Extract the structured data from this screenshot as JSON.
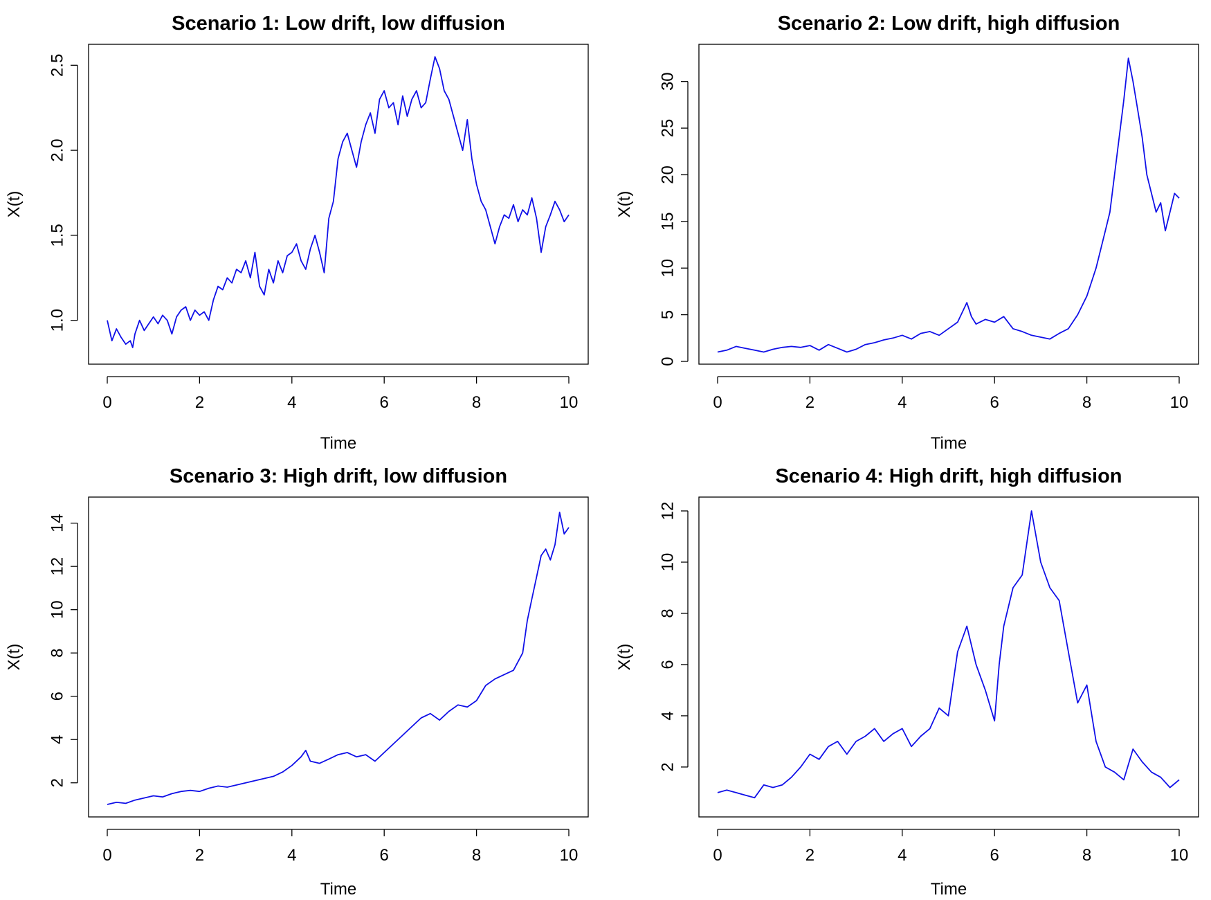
{
  "chart_data": [
    {
      "type": "line",
      "title": "Scenario 1: Low drift, low diffusion",
      "xlabel": "Time",
      "ylabel": "X(t)",
      "xlim": [
        0,
        10
      ],
      "ylim": [
        0.84,
        2.55
      ],
      "xticks": [
        0,
        2,
        4,
        6,
        8,
        10
      ],
      "yticks": [
        1.0,
        1.5,
        2.0,
        2.5
      ],
      "ytick_labels": [
        "1.0",
        "1.5",
        "2.0",
        "2.5"
      ],
      "grid": false,
      "series_color": "#1010e8",
      "x": [
        0,
        0.1,
        0.2,
        0.3,
        0.4,
        0.5,
        0.55,
        0.6,
        0.7,
        0.8,
        0.9,
        1.0,
        1.1,
        1.2,
        1.3,
        1.4,
        1.5,
        1.6,
        1.7,
        1.8,
        1.9,
        2.0,
        2.1,
        2.2,
        2.3,
        2.4,
        2.5,
        2.6,
        2.7,
        2.8,
        2.9,
        3.0,
        3.1,
        3.2,
        3.3,
        3.4,
        3.5,
        3.6,
        3.7,
        3.8,
        3.9,
        4.0,
        4.1,
        4.2,
        4.3,
        4.4,
        4.5,
        4.6,
        4.7,
        4.8,
        4.9,
        5.0,
        5.1,
        5.2,
        5.3,
        5.4,
        5.5,
        5.6,
        5.7,
        5.8,
        5.9,
        6.0,
        6.1,
        6.2,
        6.3,
        6.4,
        6.5,
        6.6,
        6.7,
        6.8,
        6.9,
        7.0,
        7.1,
        7.2,
        7.3,
        7.4,
        7.5,
        7.6,
        7.7,
        7.8,
        7.9,
        8.0,
        8.1,
        8.2,
        8.3,
        8.4,
        8.5,
        8.6,
        8.7,
        8.8,
        8.9,
        9.0,
        9.1,
        9.2,
        9.3,
        9.4,
        9.5,
        9.6,
        9.7,
        9.8,
        9.9,
        10.0
      ],
      "y": [
        1.0,
        0.88,
        0.95,
        0.9,
        0.86,
        0.88,
        0.84,
        0.92,
        1.0,
        0.94,
        0.98,
        1.02,
        0.98,
        1.03,
        1.0,
        0.92,
        1.02,
        1.06,
        1.08,
        1.0,
        1.06,
        1.03,
        1.05,
        1.0,
        1.12,
        1.2,
        1.18,
        1.25,
        1.22,
        1.3,
        1.28,
        1.35,
        1.25,
        1.4,
        1.2,
        1.15,
        1.3,
        1.22,
        1.35,
        1.28,
        1.38,
        1.4,
        1.45,
        1.35,
        1.3,
        1.42,
        1.5,
        1.4,
        1.28,
        1.6,
        1.7,
        1.95,
        2.05,
        2.1,
        2.0,
        1.9,
        2.05,
        2.15,
        2.22,
        2.1,
        2.3,
        2.35,
        2.25,
        2.28,
        2.15,
        2.32,
        2.2,
        2.3,
        2.35,
        2.25,
        2.28,
        2.42,
        2.55,
        2.48,
        2.35,
        2.3,
        2.2,
        2.1,
        2.0,
        2.18,
        1.95,
        1.8,
        1.7,
        1.65,
        1.55,
        1.45,
        1.55,
        1.62,
        1.6,
        1.68,
        1.58,
        1.65,
        1.62,
        1.72,
        1.6,
        1.4,
        1.55,
        1.62,
        1.7,
        1.65,
        1.58,
        1.62
      ]
    },
    {
      "type": "line",
      "title": "Scenario 2: Low drift, high diffusion",
      "xlabel": "Time",
      "ylabel": "X(t)",
      "xlim": [
        0,
        10
      ],
      "ylim": [
        0,
        32.5
      ],
      "xticks": [
        0,
        2,
        4,
        6,
        8,
        10
      ],
      "yticks": [
        0,
        5,
        10,
        15,
        20,
        25,
        30
      ],
      "ytick_labels": [
        "0",
        "5",
        "10",
        "15",
        "20",
        "25",
        "30"
      ],
      "grid": false,
      "series_color": "#1010e8",
      "x": [
        0,
        0.2,
        0.4,
        0.6,
        0.8,
        1.0,
        1.2,
        1.4,
        1.6,
        1.8,
        2.0,
        2.2,
        2.4,
        2.6,
        2.8,
        3.0,
        3.2,
        3.4,
        3.6,
        3.8,
        4.0,
        4.2,
        4.4,
        4.6,
        4.8,
        5.0,
        5.2,
        5.4,
        5.5,
        5.6,
        5.8,
        6.0,
        6.2,
        6.4,
        6.6,
        6.8,
        7.0,
        7.2,
        7.4,
        7.6,
        7.8,
        8.0,
        8.1,
        8.2,
        8.3,
        8.4,
        8.5,
        8.6,
        8.7,
        8.8,
        8.9,
        9.0,
        9.1,
        9.2,
        9.3,
        9.4,
        9.5,
        9.6,
        9.7,
        9.8,
        9.9,
        10.0
      ],
      "y": [
        1.0,
        1.2,
        1.6,
        1.4,
        1.2,
        1.0,
        1.3,
        1.5,
        1.6,
        1.5,
        1.7,
        1.2,
        1.8,
        1.4,
        1.0,
        1.3,
        1.8,
        2.0,
        2.3,
        2.5,
        2.8,
        2.4,
        3.0,
        3.2,
        2.8,
        3.5,
        4.2,
        6.3,
        4.8,
        4.0,
        4.5,
        4.2,
        4.8,
        3.5,
        3.2,
        2.8,
        2.6,
        2.4,
        3.0,
        3.5,
        5.0,
        7.0,
        8.5,
        10.0,
        12.0,
        14.0,
        16.0,
        20.0,
        24.0,
        28.0,
        32.5,
        30.0,
        27.0,
        24.0,
        20.0,
        18.0,
        16.0,
        17.0,
        14.0,
        16.0,
        18.0,
        17.5
      ]
    },
    {
      "type": "line",
      "title": "Scenario 3: High drift, low diffusion",
      "xlabel": "Time",
      "ylabel": "X(t)",
      "xlim": [
        0,
        10
      ],
      "ylim": [
        1.0,
        14.5
      ],
      "xticks": [
        0,
        2,
        4,
        6,
        8,
        10
      ],
      "yticks": [
        2,
        4,
        6,
        8,
        10,
        12,
        14
      ],
      "ytick_labels": [
        "2",
        "4",
        "6",
        "8",
        "10",
        "12",
        "14"
      ],
      "grid": false,
      "series_color": "#1010e8",
      "x": [
        0,
        0.2,
        0.4,
        0.6,
        0.8,
        1.0,
        1.2,
        1.4,
        1.6,
        1.8,
        2.0,
        2.2,
        2.4,
        2.6,
        2.8,
        3.0,
        3.2,
        3.4,
        3.6,
        3.8,
        4.0,
        4.2,
        4.3,
        4.4,
        4.6,
        4.8,
        5.0,
        5.2,
        5.4,
        5.6,
        5.8,
        6.0,
        6.2,
        6.4,
        6.6,
        6.8,
        7.0,
        7.2,
        7.4,
        7.6,
        7.8,
        8.0,
        8.2,
        8.4,
        8.6,
        8.8,
        9.0,
        9.1,
        9.2,
        9.3,
        9.4,
        9.5,
        9.6,
        9.7,
        9.8,
        9.9,
        10.0
      ],
      "y": [
        1.0,
        1.1,
        1.05,
        1.2,
        1.3,
        1.4,
        1.35,
        1.5,
        1.6,
        1.65,
        1.6,
        1.75,
        1.85,
        1.8,
        1.9,
        2.0,
        2.1,
        2.2,
        2.3,
        2.5,
        2.8,
        3.2,
        3.5,
        3.0,
        2.9,
        3.1,
        3.3,
        3.4,
        3.2,
        3.3,
        3.0,
        3.4,
        3.8,
        4.2,
        4.6,
        5.0,
        5.2,
        4.9,
        5.3,
        5.6,
        5.5,
        5.8,
        6.5,
        6.8,
        7.0,
        7.2,
        8.0,
        9.5,
        10.5,
        11.5,
        12.5,
        12.8,
        12.3,
        13.0,
        14.5,
        13.5,
        13.8
      ]
    },
    {
      "type": "line",
      "title": "Scenario 4: High drift, high diffusion",
      "xlabel": "Time",
      "ylabel": "X(t)",
      "xlim": [
        0,
        10
      ],
      "ylim": [
        0.7,
        12.0
      ],
      "xticks": [
        0,
        2,
        4,
        6,
        8,
        10
      ],
      "yticks": [
        2,
        4,
        6,
        8,
        10,
        12
      ],
      "ytick_labels": [
        "2",
        "4",
        "6",
        "8",
        "10",
        "12"
      ],
      "grid": false,
      "series_color": "#1010e8",
      "x": [
        0,
        0.2,
        0.4,
        0.6,
        0.8,
        1.0,
        1.2,
        1.4,
        1.6,
        1.8,
        2.0,
        2.2,
        2.4,
        2.6,
        2.8,
        3.0,
        3.2,
        3.4,
        3.6,
        3.8,
        4.0,
        4.2,
        4.4,
        4.6,
        4.8,
        5.0,
        5.2,
        5.4,
        5.6,
        5.8,
        6.0,
        6.1,
        6.2,
        6.4,
        6.6,
        6.8,
        7.0,
        7.2,
        7.4,
        7.6,
        7.8,
        8.0,
        8.2,
        8.4,
        8.6,
        8.8,
        9.0,
        9.2,
        9.4,
        9.6,
        9.8,
        10.0
      ],
      "y": [
        1.0,
        1.1,
        1.0,
        0.9,
        0.8,
        1.3,
        1.2,
        1.3,
        1.6,
        2.0,
        2.5,
        2.3,
        2.8,
        3.0,
        2.5,
        3.0,
        3.2,
        3.5,
        3.0,
        3.3,
        3.5,
        2.8,
        3.2,
        3.5,
        4.3,
        4.0,
        6.5,
        7.5,
        6.0,
        5.0,
        3.8,
        6.0,
        7.5,
        9.0,
        9.5,
        12.0,
        10.0,
        9.0,
        8.5,
        6.5,
        4.5,
        5.2,
        3.0,
        2.0,
        1.8,
        1.5,
        2.7,
        2.2,
        1.8,
        1.6,
        1.2,
        1.5
      ]
    }
  ]
}
